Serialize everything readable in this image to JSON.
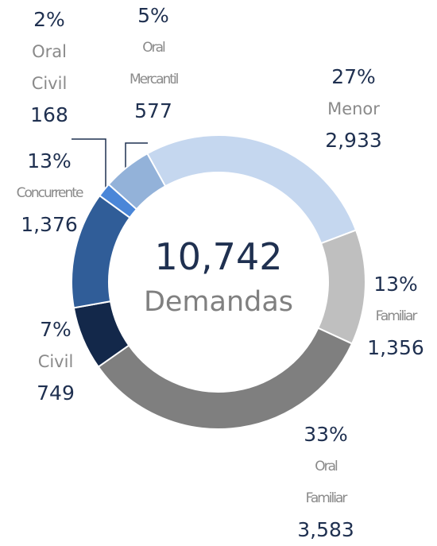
{
  "chart_data": {
    "type": "donut",
    "categories": [
      "Menor",
      "Familiar",
      "Oral Familiar",
      "Civil",
      "Concurrente",
      "Oral Civil",
      "Oral Mercantil"
    ],
    "values": [
      2933,
      1356,
      3583,
      749,
      1376,
      168,
      577
    ],
    "value_labels": [
      "2,933",
      "1,356",
      "3,583",
      "749",
      "1,376",
      "168",
      "577"
    ],
    "percent_labels": [
      "27%",
      "13%",
      "33%",
      "7%",
      "13%",
      "2%",
      "5%"
    ],
    "colors": [
      "#c5d7ef",
      "#bfbfbf",
      "#7f7f7f",
      "#13284a",
      "#305d98",
      "#4a86d8",
      "#93b2d9"
    ],
    "total_label": "10,742",
    "center_label": "Demandas"
  }
}
